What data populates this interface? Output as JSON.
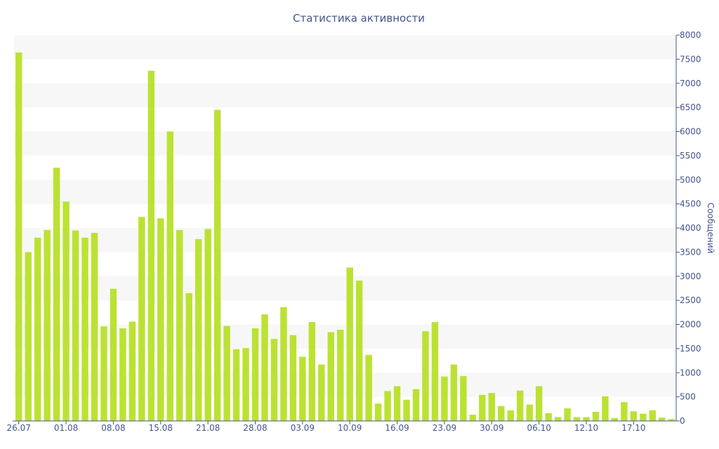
{
  "chart_data": {
    "type": "bar",
    "title": "Статистика активности",
    "xlabel": "",
    "ylabel": "Сообщений",
    "ylim": [
      0,
      8000
    ],
    "y_ticks": [
      0,
      500,
      1000,
      1500,
      2000,
      2500,
      3000,
      3500,
      4000,
      4500,
      5000,
      5500,
      6000,
      6500,
      7000,
      7500,
      8000
    ],
    "y_axis_position": "right",
    "grid": "alternating horizontal bands",
    "colors": {
      "bar": "#bbe233",
      "text": "#44548e",
      "band": "#f7f7f7",
      "axis": "#44548e"
    },
    "x_tick_labels": [
      {
        "label": "26.07",
        "index": 0
      },
      {
        "label": "01.08",
        "index": 5
      },
      {
        "label": "08.08",
        "index": 10
      },
      {
        "label": "15.08",
        "index": 15
      },
      {
        "label": "21.08",
        "index": 20
      },
      {
        "label": "28.08",
        "index": 25
      },
      {
        "label": "03.09",
        "index": 30
      },
      {
        "label": "10.09",
        "index": 35
      },
      {
        "label": "16.09",
        "index": 40
      },
      {
        "label": "23.09",
        "index": 45
      },
      {
        "label": "30.09",
        "index": 50
      },
      {
        "label": "06.10",
        "index": 55
      },
      {
        "label": "12.10",
        "index": 60
      },
      {
        "label": "17.10",
        "index": 65
      }
    ],
    "values": [
      7640,
      3500,
      3800,
      3960,
      5250,
      4550,
      3950,
      3800,
      3900,
      1960,
      2740,
      1920,
      2060,
      4230,
      7260,
      4200,
      6000,
      3960,
      2650,
      3770,
      3980,
      6450,
      1970,
      1490,
      1510,
      1920,
      2210,
      1700,
      2360,
      1780,
      1330,
      2050,
      1170,
      1840,
      1890,
      3180,
      2910,
      1370,
      360,
      620,
      720,
      440,
      660,
      1860,
      2050,
      920,
      1170,
      930,
      130,
      540,
      580,
      310,
      220,
      630,
      340,
      720,
      160,
      80,
      260,
      80,
      80,
      190,
      510,
      60,
      390,
      200,
      150,
      220,
      70,
      40
    ]
  }
}
